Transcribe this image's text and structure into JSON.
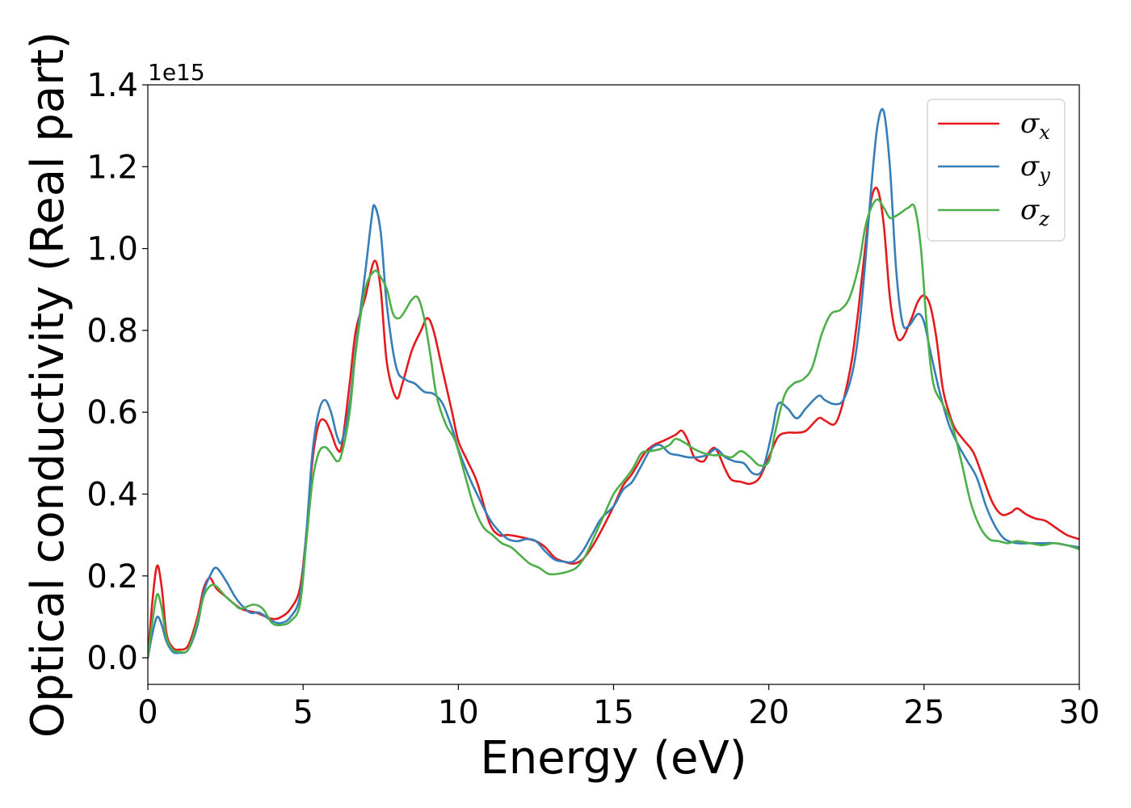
{
  "chart_data": {
    "type": "line",
    "xlabel": "Energy (eV)",
    "ylabel": "Optical conductivity (Real part)",
    "y_offset_label": "1e15",
    "xlim": [
      0,
      30
    ],
    "ylim": [
      -0.065,
      1.4
    ],
    "x_ticks": [
      0,
      5,
      10,
      15,
      20,
      25,
      30
    ],
    "x_tick_labels": [
      "0",
      "5",
      "10",
      "15",
      "20",
      "25",
      "30"
    ],
    "y_ticks": [
      0.0,
      0.2,
      0.4,
      0.6,
      0.8,
      1.0,
      1.2,
      1.4
    ],
    "y_tick_labels": [
      "0.0",
      "0.2",
      "0.4",
      "0.6",
      "0.8",
      "1.0",
      "1.2",
      "1.4"
    ],
    "grid": false,
    "legend_position": "top-right",
    "series": [
      {
        "name": "σx",
        "legend_symbol": "σ",
        "legend_sub": "x",
        "color": "#e41a1c",
        "x": [
          0,
          0.15,
          0.3,
          0.45,
          0.6,
          0.8,
          1.0,
          1.3,
          1.6,
          1.8,
          2.0,
          2.2,
          2.5,
          3.0,
          3.5,
          4.0,
          4.3,
          4.6,
          4.9,
          5.1,
          5.3,
          5.5,
          5.7,
          5.9,
          6.1,
          6.25,
          6.5,
          6.7,
          7.0,
          7.3,
          7.5,
          7.7,
          8.0,
          8.2,
          8.5,
          8.8,
          9.0,
          9.2,
          9.5,
          9.8,
          10.0,
          10.3,
          10.6,
          11.0,
          11.3,
          11.6,
          12.0,
          12.5,
          12.8,
          13.1,
          13.4,
          13.7,
          14.0,
          14.3,
          14.6,
          15.0,
          15.3,
          15.6,
          16.0,
          16.3,
          16.6,
          17.0,
          17.2,
          17.4,
          17.6,
          17.9,
          18.1,
          18.3,
          18.6,
          18.8,
          19.1,
          19.4,
          19.7,
          20.0,
          20.3,
          20.6,
          20.9,
          21.2,
          21.6,
          21.8,
          22.1,
          22.3,
          22.5,
          22.7,
          22.9,
          23.1,
          23.3,
          23.5,
          23.7,
          23.9,
          24.1,
          24.3,
          24.6,
          24.8,
          25.0,
          25.2,
          25.4,
          25.6,
          25.8,
          26.0,
          26.3,
          26.6,
          26.9,
          27.2,
          27.5,
          27.8,
          28.0,
          28.3,
          28.6,
          28.9,
          29.2,
          29.6,
          30.0
        ],
        "y": [
          0,
          0.14,
          0.225,
          0.17,
          0.06,
          0.025,
          0.02,
          0.03,
          0.1,
          0.17,
          0.195,
          0.17,
          0.15,
          0.12,
          0.11,
          0.095,
          0.1,
          0.12,
          0.17,
          0.3,
          0.48,
          0.57,
          0.58,
          0.55,
          0.51,
          0.52,
          0.67,
          0.8,
          0.88,
          0.97,
          0.9,
          0.72,
          0.635,
          0.67,
          0.75,
          0.8,
          0.83,
          0.8,
          0.7,
          0.6,
          0.53,
          0.48,
          0.43,
          0.33,
          0.3,
          0.3,
          0.295,
          0.285,
          0.27,
          0.245,
          0.235,
          0.23,
          0.24,
          0.27,
          0.31,
          0.37,
          0.42,
          0.45,
          0.5,
          0.52,
          0.53,
          0.545,
          0.555,
          0.53,
          0.49,
          0.48,
          0.505,
          0.51,
          0.46,
          0.435,
          0.43,
          0.425,
          0.44,
          0.49,
          0.54,
          0.55,
          0.55,
          0.555,
          0.585,
          0.58,
          0.57,
          0.6,
          0.66,
          0.74,
          0.86,
          1.0,
          1.12,
          1.145,
          1.06,
          0.88,
          0.79,
          0.78,
          0.83,
          0.87,
          0.885,
          0.86,
          0.78,
          0.66,
          0.6,
          0.56,
          0.53,
          0.5,
          0.44,
          0.38,
          0.35,
          0.355,
          0.365,
          0.35,
          0.34,
          0.335,
          0.32,
          0.3,
          0.29
        ]
      },
      {
        "name": "σy",
        "legend_symbol": "σ",
        "legend_sub": "y",
        "color": "#377eb8",
        "x": [
          0,
          0.15,
          0.3,
          0.45,
          0.6,
          0.8,
          1.0,
          1.3,
          1.6,
          1.8,
          2.0,
          2.2,
          2.5,
          2.8,
          3.0,
          3.3,
          3.6,
          4.0,
          4.3,
          4.6,
          4.9,
          5.1,
          5.3,
          5.5,
          5.7,
          5.9,
          6.1,
          6.25,
          6.5,
          6.7,
          7.0,
          7.2,
          7.3,
          7.5,
          7.7,
          8.0,
          8.3,
          8.6,
          8.9,
          9.2,
          9.5,
          9.8,
          10.0,
          10.3,
          10.6,
          11.0,
          11.3,
          11.6,
          11.9,
          12.2,
          12.5,
          12.8,
          13.1,
          13.4,
          13.7,
          14.0,
          14.3,
          14.6,
          15.0,
          15.3,
          15.6,
          15.9,
          16.2,
          16.5,
          16.8,
          17.1,
          17.4,
          17.7,
          18.0,
          18.3,
          18.6,
          18.9,
          19.2,
          19.5,
          19.8,
          20.1,
          20.3,
          20.6,
          20.9,
          21.2,
          21.6,
          21.8,
          22.1,
          22.4,
          22.7,
          22.9,
          23.1,
          23.3,
          23.5,
          23.7,
          23.9,
          24.1,
          24.3,
          24.5,
          24.8,
          25.0,
          25.2,
          25.5,
          25.8,
          26.1,
          26.4,
          26.7,
          27.0,
          27.3,
          27.6,
          28.0,
          28.4,
          28.8,
          29.2,
          29.6,
          30.0
        ],
        "y": [
          0,
          0.06,
          0.1,
          0.08,
          0.04,
          0.015,
          0.012,
          0.02,
          0.08,
          0.16,
          0.2,
          0.22,
          0.19,
          0.15,
          0.13,
          0.11,
          0.11,
          0.09,
          0.085,
          0.1,
          0.15,
          0.3,
          0.5,
          0.6,
          0.63,
          0.6,
          0.54,
          0.53,
          0.62,
          0.76,
          0.94,
          1.07,
          1.105,
          1.04,
          0.86,
          0.71,
          0.68,
          0.67,
          0.65,
          0.645,
          0.62,
          0.56,
          0.51,
          0.45,
          0.4,
          0.34,
          0.31,
          0.29,
          0.285,
          0.29,
          0.285,
          0.26,
          0.24,
          0.235,
          0.235,
          0.26,
          0.3,
          0.34,
          0.37,
          0.41,
          0.43,
          0.47,
          0.51,
          0.52,
          0.5,
          0.495,
          0.49,
          0.49,
          0.495,
          0.51,
          0.49,
          0.48,
          0.475,
          0.45,
          0.46,
          0.55,
          0.62,
          0.61,
          0.585,
          0.61,
          0.64,
          0.63,
          0.62,
          0.63,
          0.7,
          0.8,
          0.96,
          1.15,
          1.3,
          1.335,
          1.2,
          0.95,
          0.82,
          0.81,
          0.84,
          0.82,
          0.75,
          0.65,
          0.57,
          0.52,
          0.48,
          0.44,
          0.37,
          0.32,
          0.29,
          0.28,
          0.28,
          0.28,
          0.28,
          0.275,
          0.27
        ]
      },
      {
        "name": "σz",
        "legend_symbol": "σ",
        "legend_sub": "z",
        "color": "#4daf4a",
        "x": [
          0,
          0.15,
          0.3,
          0.45,
          0.6,
          0.8,
          1.0,
          1.3,
          1.6,
          1.8,
          2.0,
          2.2,
          2.5,
          2.8,
          3.0,
          3.4,
          3.7,
          4.0,
          4.3,
          4.6,
          4.9,
          5.1,
          5.3,
          5.5,
          5.7,
          5.9,
          6.1,
          6.25,
          6.5,
          6.7,
          7.0,
          7.3,
          7.5,
          7.7,
          7.9,
          8.1,
          8.3,
          8.5,
          8.7,
          8.9,
          9.1,
          9.3,
          9.6,
          9.9,
          10.2,
          10.5,
          10.8,
          11.1,
          11.4,
          11.7,
          12.0,
          12.3,
          12.6,
          12.9,
          13.2,
          13.5,
          13.8,
          14.1,
          14.4,
          14.7,
          15.0,
          15.3,
          15.6,
          15.9,
          16.2,
          16.5,
          16.8,
          17.0,
          17.3,
          17.6,
          17.9,
          18.2,
          18.5,
          18.8,
          19.1,
          19.4,
          19.7,
          20.0,
          20.2,
          20.5,
          20.8,
          21.1,
          21.4,
          21.7,
          22.0,
          22.3,
          22.6,
          22.9,
          23.1,
          23.3,
          23.5,
          23.7,
          23.9,
          24.1,
          24.3,
          24.5,
          24.7,
          24.9,
          25.1,
          25.3,
          25.6,
          25.9,
          26.2,
          26.5,
          26.8,
          27.1,
          27.4,
          27.7,
          28.0,
          28.4,
          28.8,
          29.2,
          29.6,
          30.0
        ],
        "y": [
          0,
          0.09,
          0.155,
          0.12,
          0.05,
          0.02,
          0.015,
          0.02,
          0.09,
          0.15,
          0.175,
          0.175,
          0.15,
          0.13,
          0.12,
          0.13,
          0.12,
          0.085,
          0.08,
          0.09,
          0.13,
          0.28,
          0.43,
          0.5,
          0.515,
          0.5,
          0.48,
          0.5,
          0.6,
          0.75,
          0.9,
          0.945,
          0.93,
          0.9,
          0.84,
          0.83,
          0.85,
          0.875,
          0.88,
          0.83,
          0.74,
          0.64,
          0.57,
          0.53,
          0.45,
          0.37,
          0.32,
          0.3,
          0.28,
          0.27,
          0.25,
          0.23,
          0.22,
          0.205,
          0.205,
          0.21,
          0.22,
          0.25,
          0.3,
          0.35,
          0.4,
          0.43,
          0.46,
          0.5,
          0.505,
          0.51,
          0.52,
          0.535,
          0.525,
          0.51,
          0.5,
          0.495,
          0.495,
          0.49,
          0.505,
          0.49,
          0.47,
          0.48,
          0.55,
          0.64,
          0.67,
          0.68,
          0.71,
          0.79,
          0.84,
          0.85,
          0.88,
          0.96,
          1.05,
          1.1,
          1.12,
          1.1,
          1.075,
          1.08,
          1.09,
          1.1,
          1.1,
          1.0,
          0.8,
          0.67,
          0.62,
          0.57,
          0.48,
          0.38,
          0.32,
          0.29,
          0.285,
          0.28,
          0.285,
          0.28,
          0.275,
          0.28,
          0.275,
          0.265
        ]
      }
    ]
  }
}
